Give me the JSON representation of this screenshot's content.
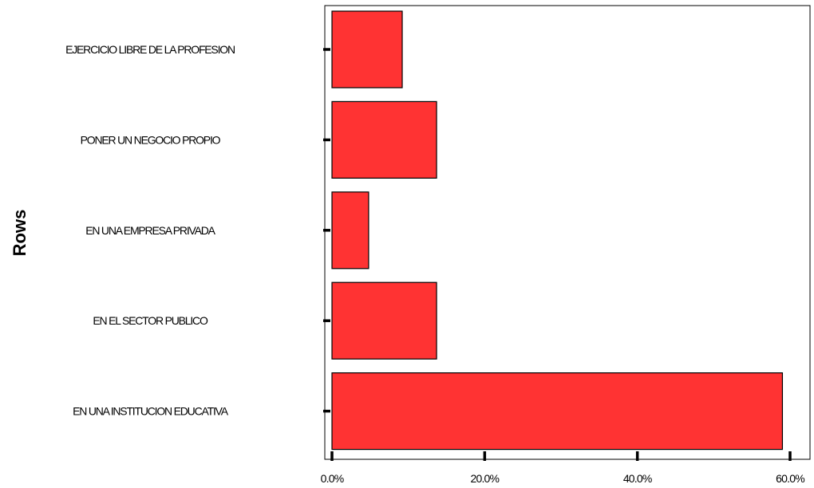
{
  "chart_data": {
    "type": "bar",
    "orientation": "horizontal",
    "categories": [
      "EJERCICIO LIBRE DE LA PROFESION",
      "PONER UN NEGOCIO PROPIO",
      "EN UNA EMPRESA PRIVADA",
      "EN EL SECTOR PUBLICO",
      "EN UNA INSTITUCION EDUCATIVA"
    ],
    "values": [
      9.2,
      13.7,
      4.8,
      13.7,
      59.0
    ],
    "value_unit": "%",
    "xlim": [
      0,
      60
    ],
    "xticks": [
      "0.0%",
      "20.0%",
      "40.0%",
      "60.0%"
    ],
    "ylabel": "Rows",
    "xlabel": "",
    "title": "",
    "bar_color": "#ff3333",
    "bar_edge_color": "#000000",
    "grid": false,
    "legend": "none"
  }
}
